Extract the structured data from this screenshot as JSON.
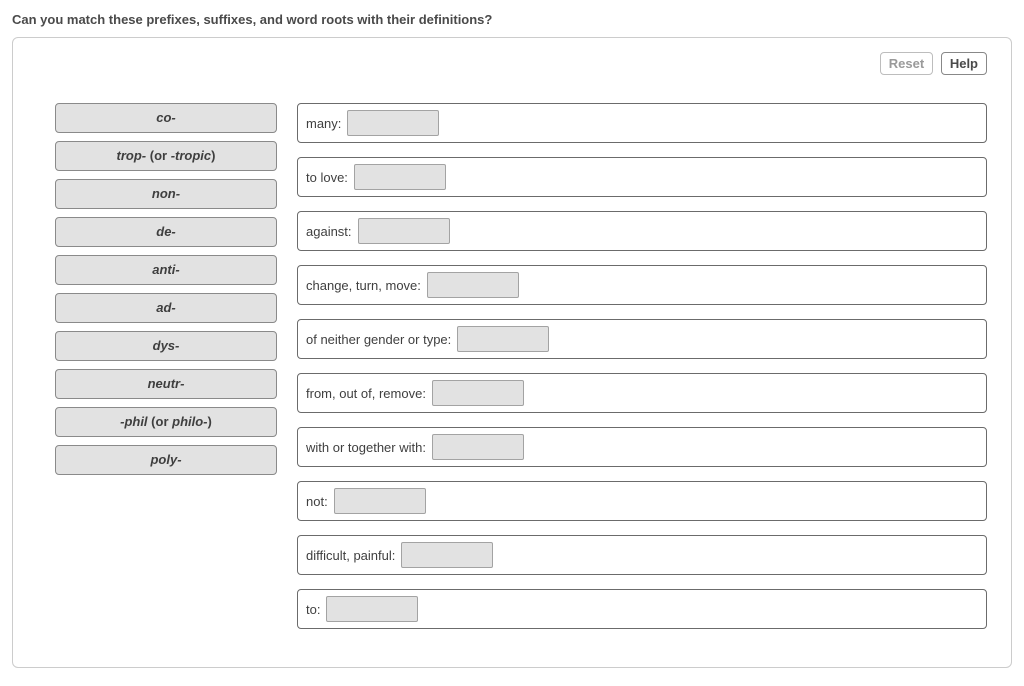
{
  "question": "Can you match these prefixes, suffixes, and word roots with their definitions?",
  "toolbar": {
    "reset_label": "Reset",
    "help_label": "Help"
  },
  "terms": [
    {
      "html": "<span>co-</span>"
    },
    {
      "html": "<span>trop-</span> <span class='plain'>(or</span> <span>-tropic</span><span class='plain'>)</span>"
    },
    {
      "html": "<span>non-</span>"
    },
    {
      "html": "<span>de-</span>"
    },
    {
      "html": "<span>anti-</span>"
    },
    {
      "html": "<span>ad-</span>"
    },
    {
      "html": "<span>dys-</span>"
    },
    {
      "html": "<span>neutr-</span>"
    },
    {
      "html": "<span>-phil</span> <span class='plain'>(or</span> <span>philo-</span><span class='plain'>)</span>"
    },
    {
      "html": "<span>poly-</span>"
    }
  ],
  "definitions": [
    {
      "label": "many:"
    },
    {
      "label": "to love:"
    },
    {
      "label": "against:"
    },
    {
      "label": "change, turn, move:"
    },
    {
      "label": "of neither gender or type:"
    },
    {
      "label": "from, out of, remove:"
    },
    {
      "label": "with or together with:"
    },
    {
      "label": "not:"
    },
    {
      "label": "difficult, painful:"
    },
    {
      "label": "to:"
    }
  ],
  "colors": {
    "panel_border": "#cccccc",
    "term_bg": "#e2e2e2",
    "term_border": "#8a8a8a",
    "def_border": "#6b6b6b",
    "drop_bg": "#e2e2e2",
    "drop_border": "#a3a3a3",
    "text": "#4a4a4a"
  }
}
